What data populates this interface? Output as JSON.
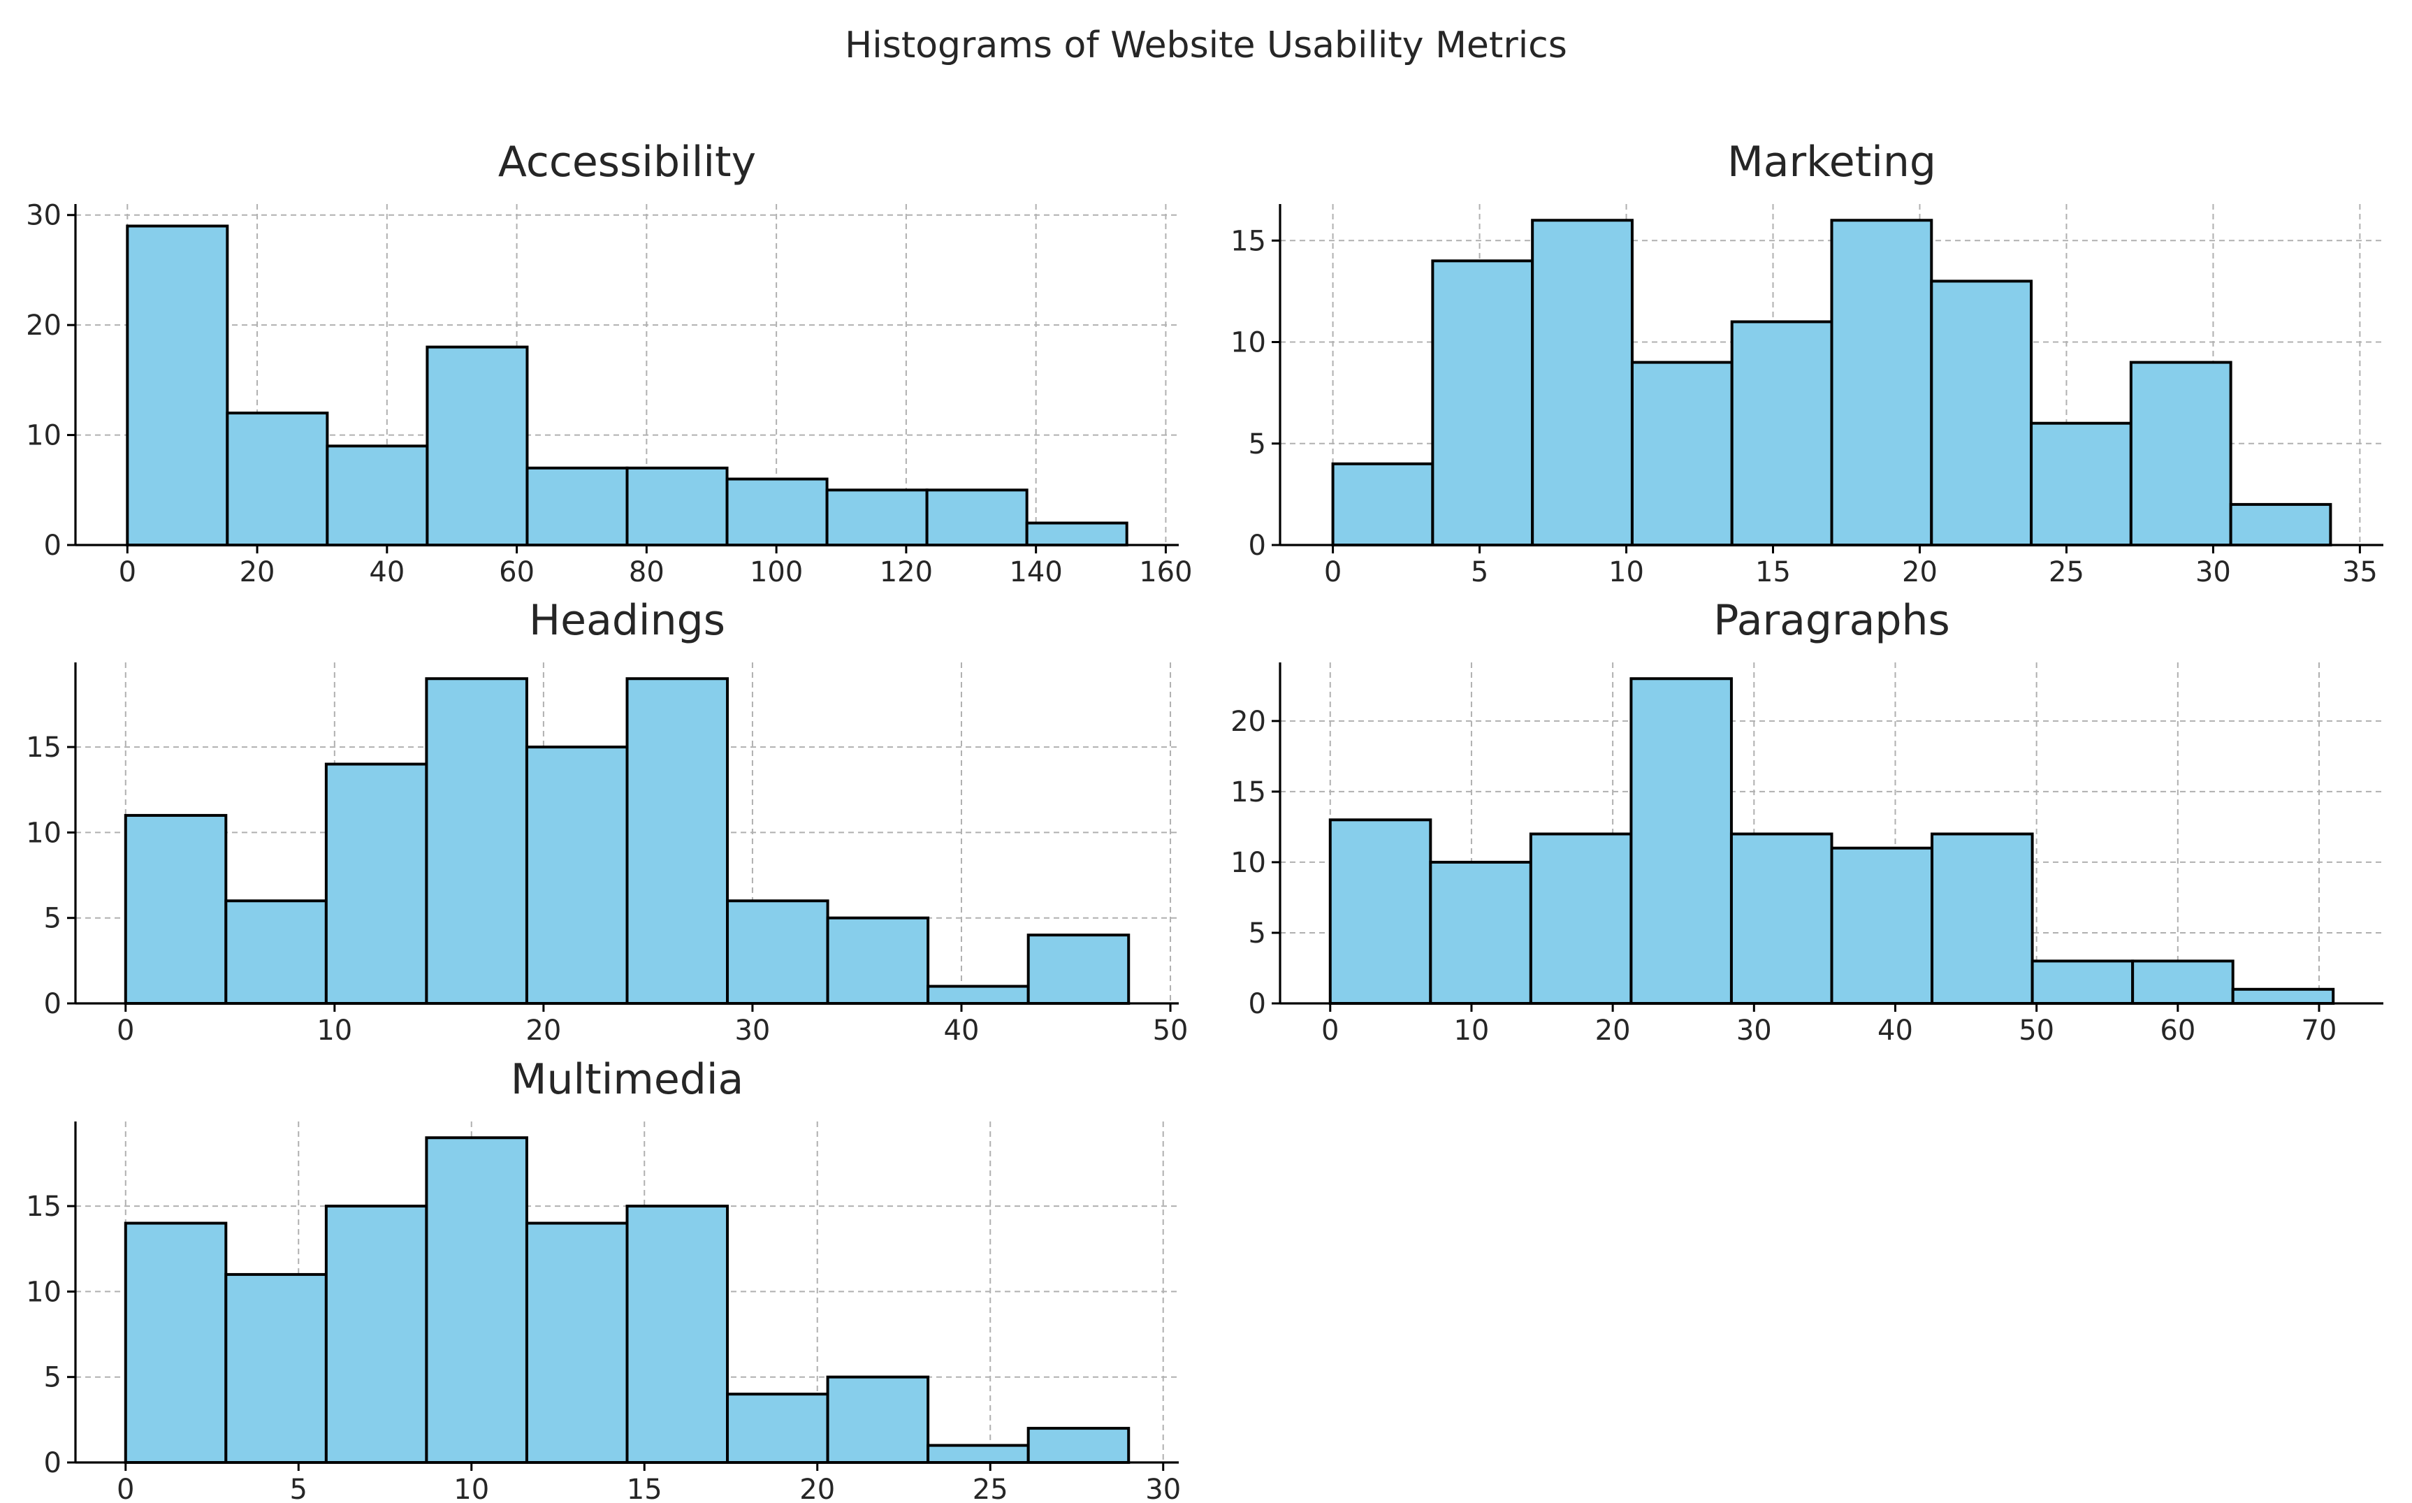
{
  "title": "Histograms of Website Usability Metrics",
  "colors": {
    "bar_fill": "#87ceeb",
    "bar_edge": "#000000",
    "grid": "#b0b0b0"
  },
  "chart_data": [
    {
      "type": "bar",
      "title": "Accessibility",
      "bin_edges": [
        0,
        15.4,
        30.8,
        46.2,
        61.6,
        77,
        92.4,
        107.8,
        123.2,
        138.6,
        154
      ],
      "values": [
        29,
        12,
        9,
        18,
        7,
        7,
        6,
        5,
        5,
        2
      ],
      "xlim": [
        -8,
        162
      ],
      "ylim": [
        0,
        31
      ],
      "xticks": [
        0,
        20,
        40,
        60,
        80,
        100,
        120,
        140,
        160
      ],
      "xtick_labels": [
        "0",
        "20",
        "40",
        "60",
        "80",
        "100",
        "120",
        "140",
        "160"
      ],
      "yticks": [
        0,
        10,
        20,
        30
      ],
      "ytick_labels": [
        "0",
        "10",
        "20",
        "30"
      ],
      "grid": true
    },
    {
      "type": "bar",
      "title": "Marketing",
      "bin_edges": [
        0,
        3.4,
        6.8,
        10.2,
        13.6,
        17,
        20.4,
        23.8,
        27.2,
        30.6,
        34
      ],
      "values": [
        4,
        14,
        16,
        9,
        11,
        16,
        13,
        6,
        9,
        2
      ],
      "xlim": [
        -1.8,
        35.8
      ],
      "ylim": [
        0,
        16.8
      ],
      "xticks": [
        0,
        5,
        10,
        15,
        20,
        25,
        30,
        35
      ],
      "xtick_labels": [
        "0",
        "5",
        "10",
        "15",
        "20",
        "25",
        "30",
        "35"
      ],
      "yticks": [
        0,
        5,
        10,
        15
      ],
      "ytick_labels": [
        "0",
        "5",
        "10",
        "15"
      ],
      "grid": true
    },
    {
      "type": "bar",
      "title": "Headings",
      "bin_edges": [
        0,
        4.8,
        9.6,
        14.4,
        19.2,
        24,
        28.8,
        33.6,
        38.4,
        43.2,
        48
      ],
      "values": [
        11,
        6,
        14,
        19,
        15,
        19,
        6,
        5,
        1,
        4
      ],
      "xlim": [
        -2.4,
        50.4
      ],
      "ylim": [
        0,
        19.95
      ],
      "xticks": [
        0,
        10,
        20,
        30,
        40,
        50
      ],
      "xtick_labels": [
        "0",
        "10",
        "20",
        "30",
        "40",
        "50"
      ],
      "yticks": [
        0,
        5,
        10,
        15
      ],
      "ytick_labels": [
        "0",
        "5",
        "10",
        "15"
      ],
      "grid": true
    },
    {
      "type": "bar",
      "title": "Paragraphs",
      "bin_edges": [
        0,
        7.1,
        14.2,
        21.3,
        28.4,
        35.5,
        42.6,
        49.7,
        56.8,
        63.9,
        71
      ],
      "values": [
        13,
        10,
        12,
        23,
        12,
        11,
        12,
        3,
        3,
        1
      ],
      "xlim": [
        -3.55,
        74.55
      ],
      "ylim": [
        0,
        24.15
      ],
      "xticks": [
        0,
        10,
        20,
        30,
        40,
        50,
        60,
        70
      ],
      "xtick_labels": [
        "0",
        "10",
        "20",
        "30",
        "40",
        "50",
        "60",
        "70"
      ],
      "yticks": [
        0,
        5,
        10,
        15,
        20
      ],
      "ytick_labels": [
        "0",
        "5",
        "10",
        "15",
        "20"
      ],
      "grid": true
    },
    {
      "type": "bar",
      "title": "Multimedia",
      "bin_edges": [
        0,
        2.9,
        5.8,
        8.7,
        11.6,
        14.5,
        17.4,
        20.3,
        23.2,
        26.1,
        29
      ],
      "values": [
        14,
        11,
        15,
        19,
        14,
        15,
        4,
        5,
        1,
        2
      ],
      "xlim": [
        -1.45,
        30.45
      ],
      "ylim": [
        0,
        19.95
      ],
      "xticks": [
        0,
        5,
        10,
        15,
        20,
        25,
        30
      ],
      "xtick_labels": [
        "0",
        "5",
        "10",
        "15",
        "20",
        "25",
        "30"
      ],
      "yticks": [
        0,
        5,
        10,
        15
      ],
      "ytick_labels": [
        "0",
        "5",
        "10",
        "15"
      ],
      "grid": true
    }
  ]
}
